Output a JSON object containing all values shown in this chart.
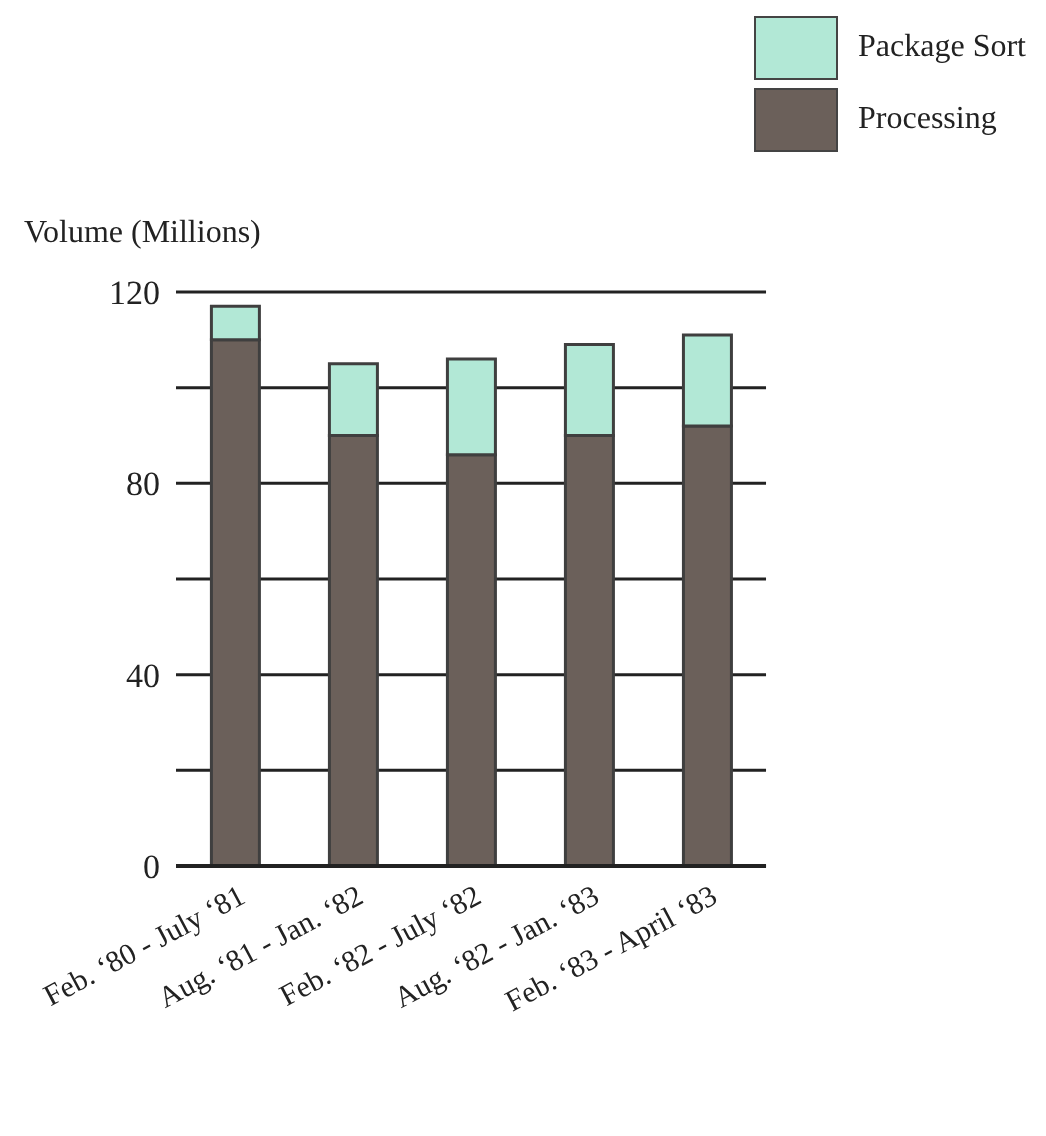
{
  "chart_data": {
    "type": "bar",
    "ylabel": "Volume (Millions)",
    "categories": [
      "Feb. ‘80 - July ‘81",
      "Aug. ‘81 - Jan. ‘82",
      "Feb. ‘82 - July ‘82",
      "Aug. ‘82 - Jan. ‘83",
      "Feb. ‘83 - April ‘83"
    ],
    "series": [
      {
        "name": "Processing",
        "color": "#6b605a",
        "values": [
          110,
          90,
          86,
          90,
          92
        ]
      },
      {
        "name": "Package Sort",
        "color": "#b2e8d6",
        "values": [
          7,
          15,
          20,
          19,
          19
        ]
      }
    ],
    "stacked": true,
    "ylim": [
      0,
      120
    ],
    "yticks": [
      0,
      {
        "value": 20,
        "label": null
      },
      40,
      {
        "value": 60,
        "label": null
      },
      80,
      {
        "value": 100,
        "label": null
      },
      120
    ],
    "grid": "y",
    "legend": "top right"
  }
}
